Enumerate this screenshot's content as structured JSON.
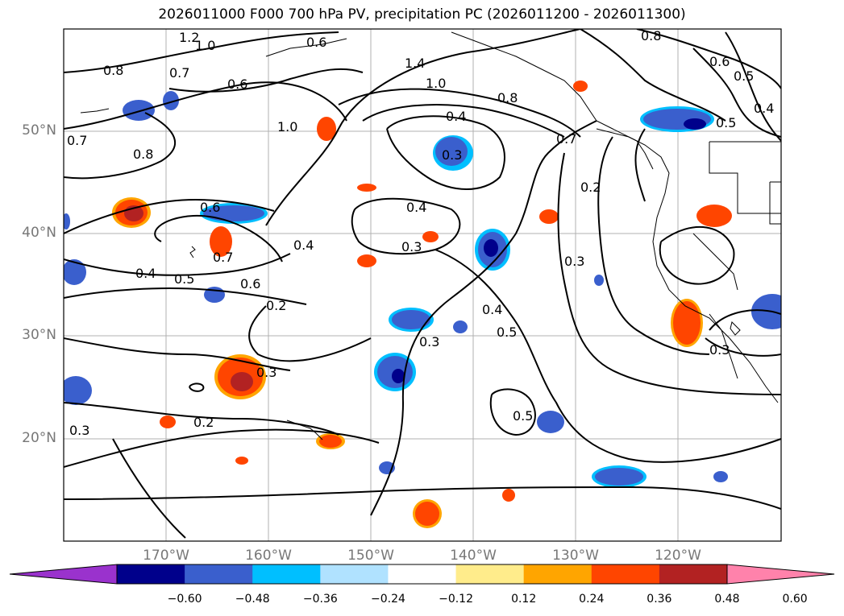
{
  "title": "2026011000 F000 700 hPa PV, precipitation PC (2026011200 - 2026011300)",
  "map": {
    "region": "North-East Pacific",
    "lon_range": [
      -180,
      -110
    ],
    "lat_range": [
      10,
      60
    ],
    "lon_ticks": [
      {
        "lon": -170,
        "label": "170°W"
      },
      {
        "lon": -160,
        "label": "160°W"
      },
      {
        "lon": -150,
        "label": "150°W"
      },
      {
        "lon": -140,
        "label": "140°W"
      },
      {
        "lon": -130,
        "label": "130°W"
      },
      {
        "lon": -120,
        "label": "120°W"
      }
    ],
    "lat_ticks": [
      {
        "lat": 20,
        "label": "20°N"
      },
      {
        "lat": 30,
        "label": "30°N"
      },
      {
        "lat": 40,
        "label": "40°N"
      },
      {
        "lat": 50,
        "label": "50°N"
      }
    ],
    "contour_labels": [
      "1.2",
      "1.0",
      "0.6",
      "0.8",
      "0.7",
      "0.6",
      "1.4",
      "1.0",
      "0.8",
      "0.6",
      "0.5",
      "0.4",
      "1.0",
      "0.8",
      "0.4",
      "0.3",
      "0.7",
      "0.2",
      "0.8",
      "0.7",
      "0.6",
      "0.4",
      "0.4",
      "0.3",
      "0.3",
      "0.7",
      "0.5",
      "0.6",
      "0.4",
      "0.2",
      "0.4",
      "0.5",
      "0.3",
      "0.3",
      "0.5",
      "0.3",
      "0.2",
      "0.3",
      "0.5"
    ]
  },
  "colorbar": {
    "ticks": [
      "−0.60",
      "−0.48",
      "−0.36",
      "−0.24",
      "−0.12",
      "0.12",
      "0.24",
      "0.36",
      "0.48",
      "0.60"
    ],
    "colors": [
      "#9a32cd",
      "#00008b",
      "#3a5fcd",
      "#00bfff",
      "#b0e2ff",
      "#ffffff",
      "#ffec8b",
      "#ffa500",
      "#ff4500",
      "#b22222",
      "#ff82ab"
    ]
  }
}
